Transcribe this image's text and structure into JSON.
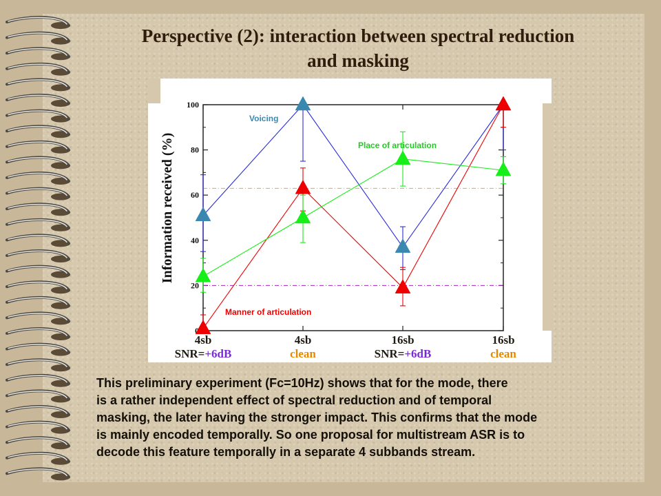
{
  "slide": {
    "title_line1": "Perspective (2): interaction between spectral reduction",
    "title_line2": "and masking"
  },
  "colors": {
    "voicing": "#3a88b0",
    "manner": "#ee0000",
    "place": "#18ee18",
    "voicing_line": "#2a2adc",
    "snr_value": "#7a2bd6",
    "clean": "#e58a00"
  },
  "chart_data": {
    "type": "line",
    "categories": [
      "4sb SNR=+6dB",
      "4sb clean",
      "16sb SNR=+6dB",
      "16sb clean"
    ],
    "ylabel": "Information received (%)",
    "ylim": [
      0,
      100
    ],
    "yticks": [
      "0",
      "20",
      "40",
      "60",
      "80",
      "100"
    ],
    "series": [
      {
        "name": "Voicing",
        "values": [
          51,
          100,
          37,
          100
        ],
        "err_low": [
          35,
          75,
          27,
          80
        ],
        "err_high": [
          69,
          100,
          46,
          100
        ]
      },
      {
        "name": "Manner of articulation",
        "values": [
          1,
          63,
          19,
          100
        ],
        "err_low": [
          0,
          53,
          11,
          90
        ],
        "err_high": [
          7,
          72,
          28,
          100
        ]
      },
      {
        "name": "Place of articulation",
        "values": [
          24,
          50,
          76,
          71
        ],
        "err_low": [
          17,
          39,
          64,
          65
        ],
        "err_high": [
          32,
          60,
          88,
          77
        ]
      }
    ],
    "reference_lines": [
      63,
      20
    ]
  },
  "bottom_labels": [
    {
      "sb": "4sb",
      "pre": "SNR=",
      "val": "+6dB",
      "clean": ""
    },
    {
      "sb": "4sb",
      "pre": "",
      "val": "",
      "clean": "clean"
    },
    {
      "sb": "16sb",
      "pre": "SNR=",
      "val": "+6dB",
      "clean": ""
    },
    {
      "sb": "16sb",
      "pre": "",
      "val": "",
      "clean": "clean"
    }
  ],
  "description": [
    "This preliminary experiment (Fc=10Hz) shows that for the mode, there",
    "is a rather independent effect of spectral reduction and of temporal",
    "masking, the later having the stronger impact. This confirms that the mode",
    "is mainly encoded temporally. So one proposal for multistream ASR is to",
    "decode this feature temporally in a separate 4 subbands stream."
  ]
}
